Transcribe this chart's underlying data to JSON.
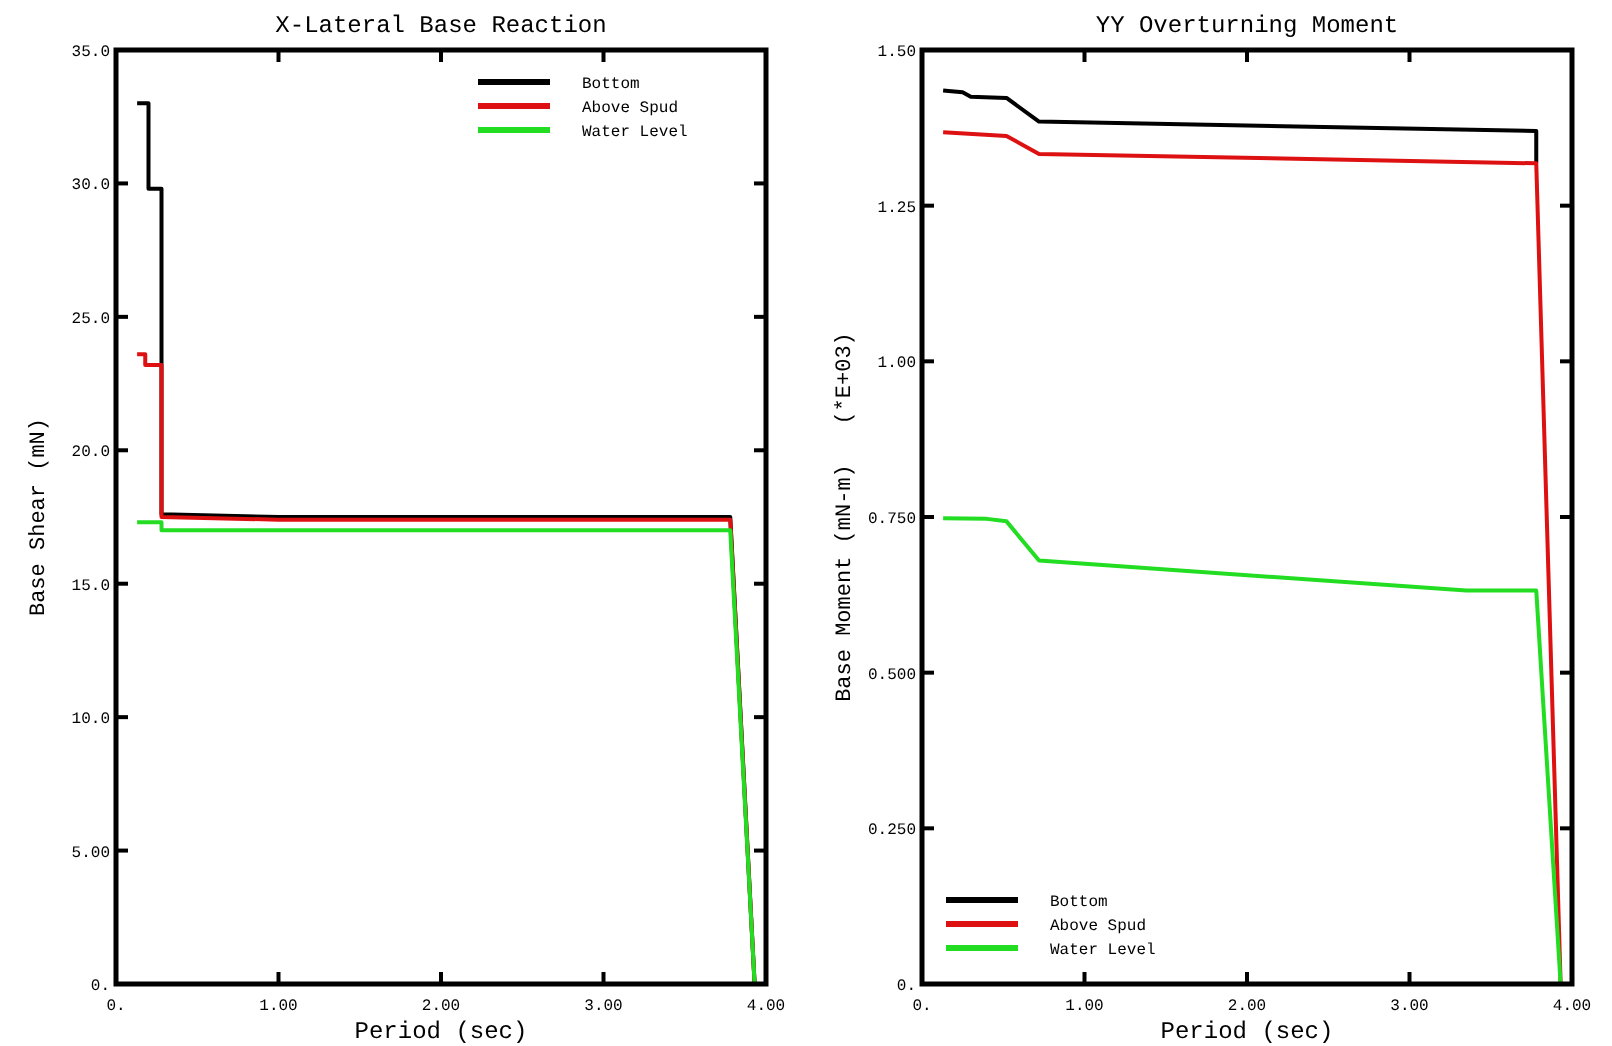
{
  "chart_data": [
    {
      "type": "line",
      "title": "X-Lateral Base Reaction",
      "xlabel": "Period (sec)",
      "ylabel": "Base Shear (mN)",
      "xlim": [
        0,
        4
      ],
      "ylim": [
        0,
        35
      ],
      "xticks": [
        {
          "value": 0,
          "label": "0."
        },
        {
          "value": 1,
          "label": "1.00"
        },
        {
          "value": 2,
          "label": "2.00"
        },
        {
          "value": 3,
          "label": "3.00"
        },
        {
          "value": 4,
          "label": "4.00"
        }
      ],
      "yticks": [
        {
          "value": 0,
          "label": "0."
        },
        {
          "value": 5,
          "label": "5.00"
        },
        {
          "value": 10,
          "label": "10.0"
        },
        {
          "value": 15,
          "label": "15.0"
        },
        {
          "value": 20,
          "label": "20.0"
        },
        {
          "value": 25,
          "label": "25.0"
        },
        {
          "value": 30,
          "label": "30.0"
        },
        {
          "value": 35,
          "label": "35.0"
        }
      ],
      "grid": false,
      "legend": "top right",
      "series": [
        {
          "name": "Bottom",
          "color": "#000000",
          "x": [
            0.13,
            0.2,
            0.2,
            0.28,
            0.28,
            1.0,
            3.78,
            3.93
          ],
          "values": [
            33.0,
            33.0,
            29.8,
            29.8,
            17.6,
            17.5,
            17.5,
            0
          ]
        },
        {
          "name": "Above Spud",
          "color": "#dd1111",
          "x": [
            0.13,
            0.18,
            0.18,
            0.28,
            0.28,
            1.0,
            3.78,
            3.93
          ],
          "values": [
            23.6,
            23.6,
            23.2,
            23.2,
            17.5,
            17.4,
            17.4,
            0
          ]
        },
        {
          "name": "Water Level",
          "color": "#22dd22",
          "x": [
            0.13,
            0.28,
            0.28,
            2.0,
            3.78,
            3.93
          ],
          "values": [
            17.3,
            17.3,
            17.0,
            17.0,
            17.0,
            0
          ]
        }
      ]
    },
    {
      "type": "line",
      "title": "YY Overturning Moment",
      "xlabel": "Period (sec)",
      "ylabel": "Base Moment (mN-m)   (*E+03)",
      "xlim": [
        0,
        4
      ],
      "ylim": [
        0,
        1.5
      ],
      "xticks": [
        {
          "value": 0,
          "label": "0."
        },
        {
          "value": 1,
          "label": "1.00"
        },
        {
          "value": 2,
          "label": "2.00"
        },
        {
          "value": 3,
          "label": "3.00"
        },
        {
          "value": 4,
          "label": "4.00"
        }
      ],
      "yticks": [
        {
          "value": 0,
          "label": "0."
        },
        {
          "value": 0.25,
          "label": "0.250"
        },
        {
          "value": 0.5,
          "label": "0.500"
        },
        {
          "value": 0.75,
          "label": "0.750"
        },
        {
          "value": 1,
          "label": "1.00"
        },
        {
          "value": 1.25,
          "label": "1.25"
        },
        {
          "value": 1.5,
          "label": "1.50"
        }
      ],
      "grid": false,
      "legend": "bottom left",
      "series": [
        {
          "name": "Bottom",
          "color": "#000000",
          "x": [
            0.13,
            0.25,
            0.3,
            0.52,
            0.72,
            3.78,
            3.78
          ],
          "values": [
            1.435,
            1.432,
            1.425,
            1.423,
            1.385,
            1.37,
            1.318
          ]
        },
        {
          "name": "Above Spud",
          "color": "#dd1111",
          "x": [
            0.13,
            0.52,
            0.72,
            3.78,
            3.93
          ],
          "values": [
            1.368,
            1.362,
            1.333,
            1.318,
            0
          ]
        },
        {
          "name": "Water Level",
          "color": "#22dd22",
          "x": [
            0.13,
            0.4,
            0.52,
            0.72,
            3.35,
            3.78,
            3.93
          ],
          "values": [
            0.748,
            0.747,
            0.743,
            0.68,
            0.632,
            0.632,
            0
          ]
        }
      ]
    }
  ]
}
